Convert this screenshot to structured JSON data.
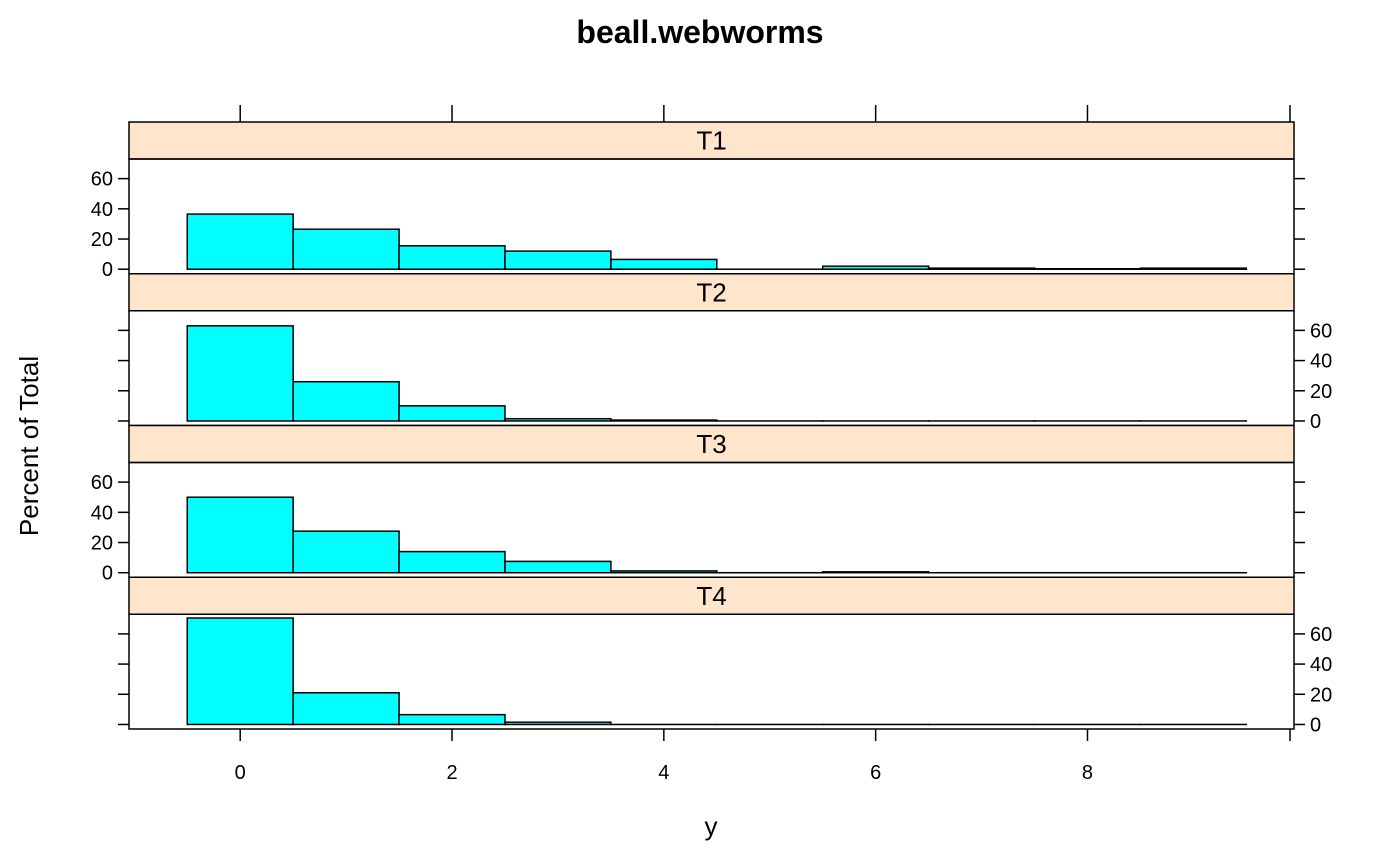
{
  "chart_data": {
    "type": "bar",
    "title": "beall.webworms",
    "xlabel": "y",
    "ylabel": "Percent of Total",
    "xlim": [
      -1.05,
      9.95
    ],
    "ylim": [
      -3,
      73
    ],
    "x_ticks": [
      "0",
      "2",
      "4",
      "6",
      "8"
    ],
    "y_ticks": [
      "0",
      "20",
      "40",
      "60"
    ],
    "bin_edges": [
      -0.5,
      0.5,
      1.5,
      2.5,
      3.5,
      4.5,
      5.5,
      6.5,
      7.5,
      8.5,
      9.5
    ],
    "layout": "4 panels stacked vertically, one column",
    "strip_color": "#ffe5cc",
    "bar_color": "#00ffff",
    "panels": [
      {
        "name": "T1",
        "values": [
          36.5,
          26.5,
          15.5,
          12,
          6.5,
          0,
          2,
          0.7,
          0.3,
          0.7
        ]
      },
      {
        "name": "T2",
        "values": [
          63,
          26,
          10,
          1.5,
          0.6,
          0,
          0,
          0,
          0,
          0
        ]
      },
      {
        "name": "T3",
        "values": [
          50,
          27.5,
          14,
          7.5,
          1.2,
          0,
          0.6,
          0,
          0,
          0
        ]
      },
      {
        "name": "T4",
        "values": [
          70.5,
          21,
          6.5,
          1.5,
          0,
          0,
          0,
          0,
          0,
          0
        ]
      }
    ]
  }
}
